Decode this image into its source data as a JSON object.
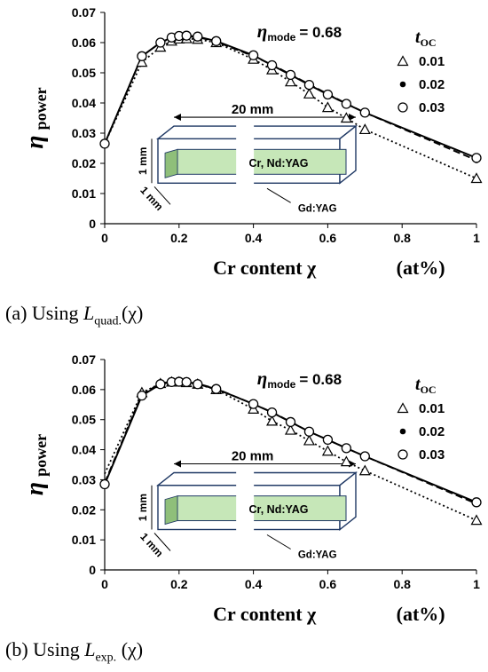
{
  "chart_data": [
    {
      "type": "line",
      "panel": "a",
      "caption": {
        "prefix": "(a) Using ",
        "symbol": "L",
        "subscript": "quad.",
        "suffix": "(χ)"
      },
      "xlabel": "Cr content χ",
      "xunit": "(at%)",
      "ylabel": "η",
      "ylabel_sub": "power",
      "xlim": [
        0,
        1
      ],
      "ylim": [
        0,
        0.07
      ],
      "xticks": [
        "0",
        "0.2",
        "0.4",
        "0.6",
        "0.8",
        "1"
      ],
      "xtick_values": [
        0,
        0.2,
        0.4,
        0.6,
        0.8,
        1
      ],
      "yticks": [
        "0",
        "0.01",
        "0.02",
        "0.03",
        "0.04",
        "0.05",
        "0.06",
        "0.07"
      ],
      "ytick_values": [
        0,
        0.01,
        0.02,
        0.03,
        0.04,
        0.05,
        0.06,
        0.07
      ],
      "annotation": {
        "eta_mode_label": "η",
        "eta_mode_sub": "mode",
        "eta_mode_value": "=    0.68"
      },
      "legend_title": "t",
      "legend_title_sub": "OC",
      "legend_position": "top-right",
      "series": [
        {
          "name": "0.01",
          "marker": "triangle",
          "line": "dotted",
          "x": [
            0,
            0.1,
            0.15,
            0.18,
            0.2,
            0.22,
            0.25,
            0.3,
            0.4,
            0.45,
            0.5,
            0.55,
            0.6,
            0.65,
            0.7,
            1.0
          ],
          "y": [
            0.0265,
            0.0535,
            0.0585,
            0.0605,
            0.0612,
            0.0613,
            0.0611,
            0.06,
            0.0545,
            0.051,
            0.047,
            0.043,
            0.0385,
            0.035,
            0.0312,
            0.015
          ]
        },
        {
          "name": "0.02",
          "marker": "dot",
          "line": "dashed",
          "x": [
            0,
            0.1,
            0.15,
            0.18,
            0.2,
            0.22,
            0.25,
            0.3,
            0.4,
            0.45,
            0.5,
            0.55,
            0.6,
            0.65,
            0.7,
            1.0
          ],
          "y": [
            0.0265,
            0.0555,
            0.06,
            0.0615,
            0.062,
            0.062,
            0.0618,
            0.0603,
            0.0555,
            0.0527,
            0.0495,
            0.0462,
            0.043,
            0.0398,
            0.0368,
            0.021
          ]
        },
        {
          "name": "0.03",
          "marker": "circle",
          "line": "solid",
          "x": [
            0,
            0.1,
            0.15,
            0.18,
            0.2,
            0.22,
            0.25,
            0.3,
            0.4,
            0.45,
            0.5,
            0.55,
            0.6,
            0.65,
            0.7,
            1.0
          ],
          "y": [
            0.0265,
            0.0555,
            0.06,
            0.0617,
            0.0622,
            0.0623,
            0.062,
            0.0605,
            0.0558,
            0.0525,
            0.0493,
            0.046,
            0.0428,
            0.0397,
            0.0368,
            0.0218
          ]
        }
      ],
      "inset": {
        "length_label": "20 mm",
        "height_label": "1 mm",
        "depth_label": "1 mm",
        "core_label": "Cr, Nd:YAG",
        "clad_label": "Gd:YAG"
      }
    },
    {
      "type": "line",
      "panel": "b",
      "caption": {
        "prefix": "(b) Using ",
        "symbol": "L",
        "subscript": "exp.",
        "suffix": " (χ)"
      },
      "xlabel": "Cr content χ",
      "xunit": "(at%)",
      "ylabel": "η",
      "ylabel_sub": "power",
      "xlim": [
        0,
        1
      ],
      "ylim": [
        0,
        0.07
      ],
      "xticks": [
        "0",
        "0.2",
        "0.4",
        "0.6",
        "0.8",
        "1"
      ],
      "xtick_values": [
        0,
        0.2,
        0.4,
        0.6,
        0.8,
        1
      ],
      "yticks": [
        "0",
        "0.01",
        "0.02",
        "0.03",
        "0.04",
        "0.05",
        "0.06",
        "0.07"
      ],
      "ytick_values": [
        0,
        0.01,
        0.02,
        0.03,
        0.04,
        0.05,
        0.06,
        0.07
      ],
      "annotation": {
        "eta_mode_label": "η",
        "eta_mode_sub": "mode",
        "eta_mode_value": "=    0.68"
      },
      "legend_title": "t",
      "legend_title_sub": "OC",
      "legend_position": "top-right",
      "series": [
        {
          "name": "0.01",
          "marker": "triangle",
          "line": "dotted",
          "x": [
            0,
            0.1,
            0.15,
            0.18,
            0.2,
            0.22,
            0.25,
            0.3,
            0.4,
            0.45,
            0.5,
            0.55,
            0.6,
            0.65,
            0.7,
            1.0
          ],
          "y": [
            0.032,
            0.059,
            0.062,
            0.0625,
            0.0625,
            0.0623,
            0.0618,
            0.06,
            0.0535,
            0.0495,
            0.0465,
            0.043,
            0.0395,
            0.036,
            0.033,
            0.0165
          ]
        },
        {
          "name": "0.02",
          "marker": "dot",
          "line": "dashed",
          "x": [
            0,
            0.1,
            0.15,
            0.18,
            0.2,
            0.22,
            0.25,
            0.3,
            0.4,
            0.45,
            0.5,
            0.55,
            0.6,
            0.65,
            0.7,
            1.0
          ],
          "y": [
            0.029,
            0.0585,
            0.062,
            0.0628,
            0.0628,
            0.0626,
            0.062,
            0.0603,
            0.0552,
            0.0525,
            0.0493,
            0.046,
            0.0433,
            0.0405,
            0.0378,
            0.022
          ]
        },
        {
          "name": "0.03",
          "marker": "circle",
          "line": "solid",
          "x": [
            0,
            0.1,
            0.15,
            0.18,
            0.2,
            0.22,
            0.25,
            0.3,
            0.4,
            0.45,
            0.5,
            0.55,
            0.6,
            0.65,
            0.7,
            1.0
          ],
          "y": [
            0.0285,
            0.058,
            0.0618,
            0.0625,
            0.0626,
            0.0625,
            0.0618,
            0.0602,
            0.0552,
            0.0524,
            0.0492,
            0.046,
            0.0433,
            0.0405,
            0.0378,
            0.0225
          ]
        }
      ],
      "inset": {
        "length_label": "20 mm",
        "height_label": "1 mm",
        "depth_label": "1 mm",
        "core_label": "Cr, Nd:YAG",
        "clad_label": "Gd:YAG"
      }
    }
  ]
}
